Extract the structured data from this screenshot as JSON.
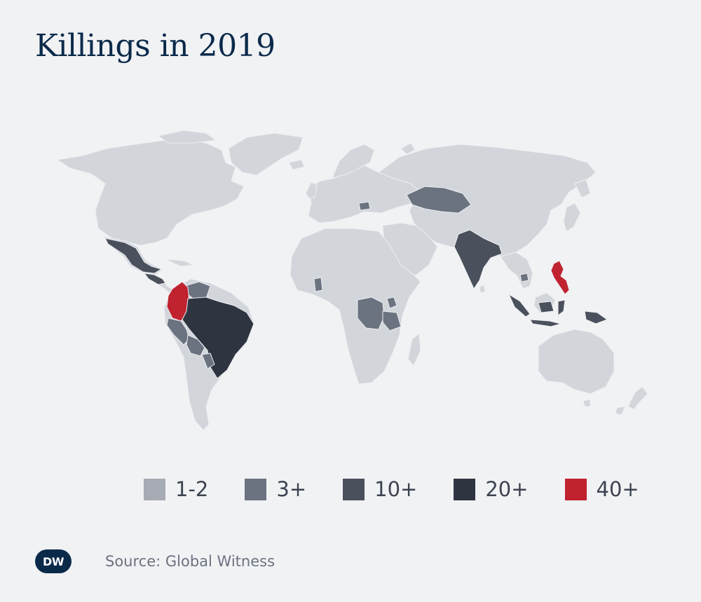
{
  "title": "Killings in 2019",
  "legend": [
    {
      "label": "1-2",
      "color": "#a7abb3"
    },
    {
      "label": "3+",
      "color": "#6b7280"
    },
    {
      "label": "10+",
      "color": "#4a505c"
    },
    {
      "label": "20+",
      "color": "#2e3541"
    },
    {
      "label": "40+",
      "color": "#c0222f"
    }
  ],
  "map": {
    "land_color": "#d2d5da",
    "border_color": "#eceef1",
    "highlighted_countries": [
      {
        "country": "Mexico",
        "category": "10+"
      },
      {
        "country": "Honduras",
        "category": "10+"
      },
      {
        "country": "Guatemala",
        "category": "10+"
      },
      {
        "country": "Colombia",
        "category": "40+"
      },
      {
        "country": "Brazil",
        "category": "20+"
      },
      {
        "country": "Venezuela",
        "category": "3+"
      },
      {
        "country": "Peru",
        "category": "3+"
      },
      {
        "country": "Bolivia",
        "category": "3+"
      },
      {
        "country": "Paraguay",
        "category": "3+"
      },
      {
        "country": "Kazakhstan",
        "category": "3+"
      },
      {
        "country": "India",
        "category": "10+"
      },
      {
        "country": "Indonesia",
        "category": "10+"
      },
      {
        "country": "Philippines",
        "category": "40+"
      },
      {
        "country": "Papua New Guinea",
        "category": "10+"
      },
      {
        "country": "DR Congo",
        "category": "3+"
      },
      {
        "country": "Uganda",
        "category": "3+"
      },
      {
        "country": "Ghana",
        "category": "3+"
      },
      {
        "country": "Cambodia",
        "category": "3+"
      },
      {
        "country": "Romania",
        "category": "3+"
      }
    ]
  },
  "footer": {
    "logo_text": "DW",
    "source": "Source: Global Witness"
  }
}
